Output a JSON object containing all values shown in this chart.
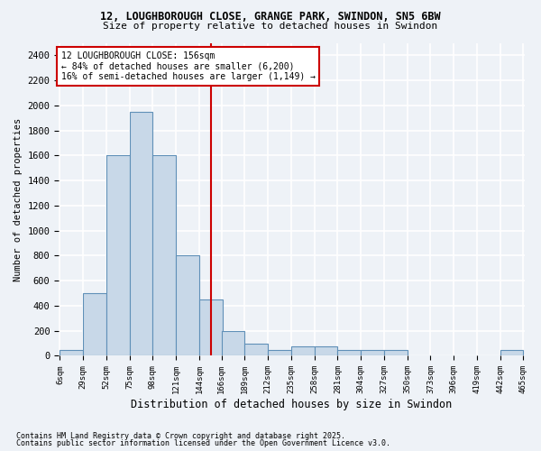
{
  "title_line1": "12, LOUGHBOROUGH CLOSE, GRANGE PARK, SWINDON, SN5 6BW",
  "title_line2": "Size of property relative to detached houses in Swindon",
  "xlabel": "Distribution of detached houses by size in Swindon",
  "ylabel": "Number of detached properties",
  "footer_line1": "Contains HM Land Registry data © Crown copyright and database right 2025.",
  "footer_line2": "Contains public sector information licensed under the Open Government Licence v3.0.",
  "annotation_line1": "12 LOUGHBOROUGH CLOSE: 156sqm",
  "annotation_line2": "← 84% of detached houses are smaller (6,200)",
  "annotation_line3": "16% of semi-detached houses are larger (1,149) →",
  "property_size": 156,
  "bar_color": "#c8d8e8",
  "bar_edge_color": "#6090b8",
  "vline_color": "#cc0000",
  "annotation_box_edge_color": "#cc0000",
  "background_color": "#eef2f7",
  "grid_color": "#ffffff",
  "ylim": [
    0,
    2500
  ],
  "yticks": [
    0,
    200,
    400,
    600,
    800,
    1000,
    1200,
    1400,
    1600,
    1800,
    2000,
    2200,
    2400
  ],
  "bin_edges": [
    6,
    29,
    52,
    75,
    98,
    121,
    144,
    166,
    189,
    212,
    235,
    258,
    281,
    304,
    327,
    350,
    373,
    396,
    419,
    442,
    465
  ],
  "bin_labels": [
    "6sqm",
    "29sqm",
    "52sqm",
    "75sqm",
    "98sqm",
    "121sqm",
    "144sqm",
    "166sqm",
    "189sqm",
    "212sqm",
    "235sqm",
    "258sqm",
    "281sqm",
    "304sqm",
    "327sqm",
    "350sqm",
    "373sqm",
    "396sqm",
    "419sqm",
    "442sqm",
    "465sqm"
  ],
  "counts": [
    50,
    500,
    1600,
    1950,
    1600,
    800,
    450,
    200,
    100,
    50,
    75,
    75,
    50,
    50,
    50,
    0,
    0,
    0,
    0,
    50
  ]
}
